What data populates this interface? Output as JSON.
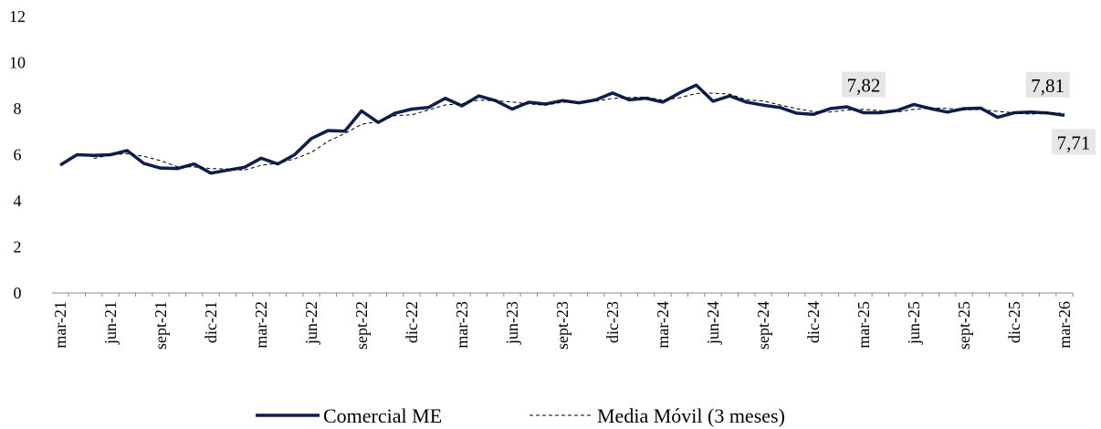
{
  "chart_data": {
    "type": "line",
    "categories": [
      "mar-21",
      null,
      null,
      "jun-21",
      null,
      null,
      "sept-21",
      null,
      null,
      "dic-21",
      null,
      null,
      "mar-22",
      null,
      null,
      "jun-22",
      null,
      null,
      "sept-22",
      null,
      null,
      "dic-22",
      null,
      null,
      "mar-23",
      null,
      null,
      "jun-23",
      null,
      null,
      "sept-23",
      null,
      null,
      "dic-23",
      null,
      null,
      "mar-24",
      null,
      null,
      "jun-24",
      null,
      null,
      "sept-24",
      null,
      null,
      "dic-24",
      null,
      null,
      "mar-25",
      null,
      null,
      "jun-25",
      null,
      null,
      "sept-25",
      null,
      null,
      "dic-25",
      null,
      null,
      "mar-26"
    ],
    "series": [
      {
        "name": "Comercial ME",
        "color": "#0d1f4f",
        "style": "solid",
        "values": [
          5.55,
          6.0,
          5.97,
          6.0,
          6.18,
          5.62,
          5.42,
          5.4,
          5.6,
          5.2,
          5.33,
          5.45,
          5.85,
          5.6,
          6.0,
          6.7,
          7.05,
          7.02,
          7.9,
          7.4,
          7.8,
          7.98,
          8.05,
          8.45,
          8.12,
          8.55,
          8.35,
          7.98,
          8.28,
          8.2,
          8.35,
          8.25,
          8.38,
          8.68,
          8.38,
          8.45,
          8.28,
          8.68,
          9.02,
          8.32,
          8.55,
          8.28,
          8.15,
          8.05,
          7.8,
          7.75,
          8.0,
          8.08,
          7.82,
          7.82,
          7.92,
          8.18,
          8.0,
          7.85,
          8.0,
          8.02,
          7.62,
          7.82,
          7.85,
          7.81,
          7.71
        ],
        "value_labels": [
          null,
          null,
          null,
          null,
          null,
          null,
          null,
          null,
          null,
          null,
          null,
          null,
          null,
          null,
          null,
          null,
          null,
          null,
          null,
          null,
          null,
          null,
          null,
          null,
          null,
          null,
          null,
          null,
          null,
          null,
          null,
          null,
          null,
          null,
          null,
          null,
          null,
          null,
          null,
          null,
          null,
          null,
          null,
          null,
          null,
          null,
          null,
          null,
          "7,82",
          null,
          null,
          null,
          null,
          null,
          null,
          null,
          null,
          null,
          null,
          "7,81",
          "7,71"
        ]
      },
      {
        "name": "Media Móvil (3 meses)",
        "color": "#000000",
        "style": "dashed",
        "values": [
          null,
          null,
          5.84,
          5.99,
          6.05,
          5.93,
          5.74,
          5.48,
          5.47,
          5.4,
          5.38,
          5.33,
          5.54,
          5.63,
          5.82,
          6.1,
          6.58,
          6.92,
          7.32,
          7.44,
          7.7,
          7.73,
          7.94,
          8.16,
          8.21,
          8.37,
          8.34,
          8.29,
          8.2,
          8.15,
          8.28,
          8.27,
          8.33,
          8.44,
          8.48,
          8.5,
          8.37,
          8.47,
          8.66,
          8.67,
          8.63,
          8.38,
          8.33,
          8.16,
          8.0,
          7.87,
          7.85,
          7.94,
          7.97,
          7.91,
          7.85,
          7.97,
          8.03,
          8.01,
          7.95,
          7.96,
          7.88,
          7.82,
          7.76,
          7.83,
          7.79
        ]
      }
    ],
    "ylim": [
      0,
      12
    ],
    "yticks": [
      0,
      2,
      4,
      6,
      8,
      10,
      12
    ],
    "grid": false,
    "legend": "bottom"
  }
}
